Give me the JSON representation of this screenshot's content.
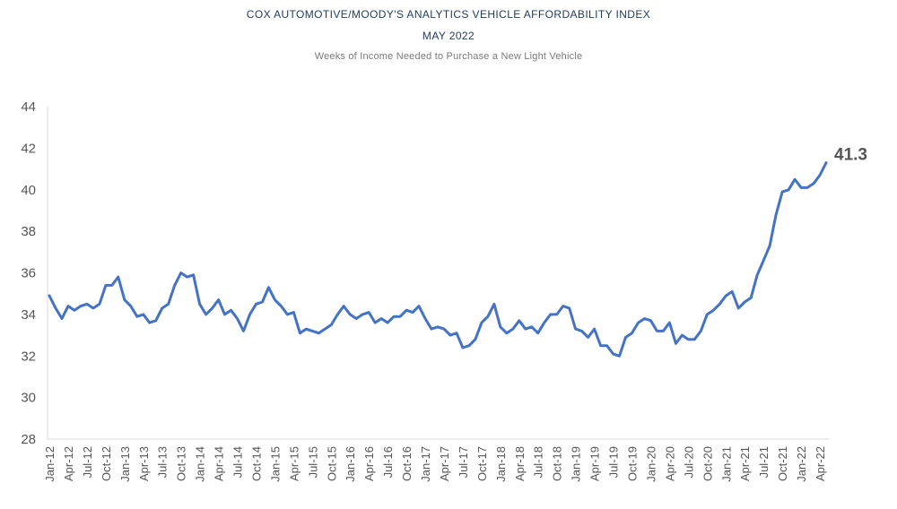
{
  "header": {
    "title": "COX AUTOMOTIVE/MOODY'S ANALYTICS VEHICLE AFFORDABILITY INDEX",
    "date": "MAY 2022",
    "subtitle": "Weeks of Income Needed to Purchase a New Light Vehicle"
  },
  "chart_data": {
    "type": "line",
    "title": "COX AUTOMOTIVE/MOODY'S ANALYTICS VEHICLE AFFORDABILITY INDEX",
    "subtitle": "Weeks of Income Needed to Purchase a New Light Vehicle",
    "xlabel": "",
    "ylabel": "",
    "ylim": [
      28,
      44
    ],
    "yticks": [
      28,
      30,
      32,
      34,
      36,
      38,
      40,
      42,
      44
    ],
    "grid": false,
    "x_tick_labels": [
      "Jan-12",
      "Apr-12",
      "Jul-12",
      "Oct-12",
      "Jan-13",
      "Apr-13",
      "Jul-13",
      "Oct-13",
      "Jan-14",
      "Apr-14",
      "Jul-14",
      "Oct-14",
      "Jan-15",
      "Apr-15",
      "Jul-15",
      "Oct-15",
      "Jan-16",
      "Apr-16",
      "Jul-16",
      "Oct-16",
      "Jan-17",
      "Apr-17",
      "Jul-17",
      "Oct-17",
      "Jan-18",
      "Apr-18",
      "Jul-18",
      "Oct-18",
      "Jan-19",
      "Apr-19",
      "Jul-19",
      "Oct-19",
      "Jan-20",
      "Apr-20",
      "Jul-20",
      "Oct-20",
      "Jan-21",
      "Apr-21",
      "Jul-21",
      "Oct-21",
      "Jan-22",
      "Apr-22"
    ],
    "x_start": "Jan-12",
    "x_end": "May-22",
    "line_color": "#4472c4",
    "end_label": "41.3",
    "series": [
      {
        "values": [
          34.9,
          34.3,
          33.8,
          34.4,
          34.2,
          34.4,
          34.5,
          34.3,
          34.5,
          35.4,
          35.4,
          35.8,
          34.7,
          34.4,
          33.9,
          34.0,
          33.6,
          33.7,
          34.3,
          34.5,
          35.4,
          36.0,
          35.8,
          35.9,
          34.5,
          34.0,
          34.3,
          34.7,
          34.0,
          34.2,
          33.8,
          33.2,
          34.0,
          34.5,
          34.6,
          35.3,
          34.7,
          34.4,
          34.0,
          34.1,
          33.1,
          33.3,
          33.2,
          33.1,
          33.3,
          33.5,
          34.0,
          34.4,
          34.0,
          33.8,
          34.0,
          34.1,
          33.6,
          33.8,
          33.6,
          33.9,
          33.9,
          34.2,
          34.1,
          34.4,
          33.8,
          33.3,
          33.4,
          33.3,
          33.0,
          33.1,
          32.4,
          32.5,
          32.8,
          33.6,
          33.9,
          34.5,
          33.4,
          33.1,
          33.3,
          33.7,
          33.3,
          33.4,
          33.1,
          33.6,
          34.0,
          34.0,
          34.4,
          34.3,
          33.3,
          33.2,
          32.9,
          33.3,
          32.5,
          32.5,
          32.1,
          32.0,
          32.9,
          33.1,
          33.6,
          33.8,
          33.7,
          33.2,
          33.2,
          33.6,
          32.6,
          33.0,
          32.8,
          32.8,
          33.2,
          34.0,
          34.2,
          34.5,
          34.9,
          35.1,
          34.3,
          34.6,
          34.8,
          35.9,
          36.6,
          37.3,
          38.8,
          39.9,
          40.0,
          40.5,
          40.1,
          40.1,
          40.3,
          40.7,
          41.3
        ]
      }
    ]
  }
}
